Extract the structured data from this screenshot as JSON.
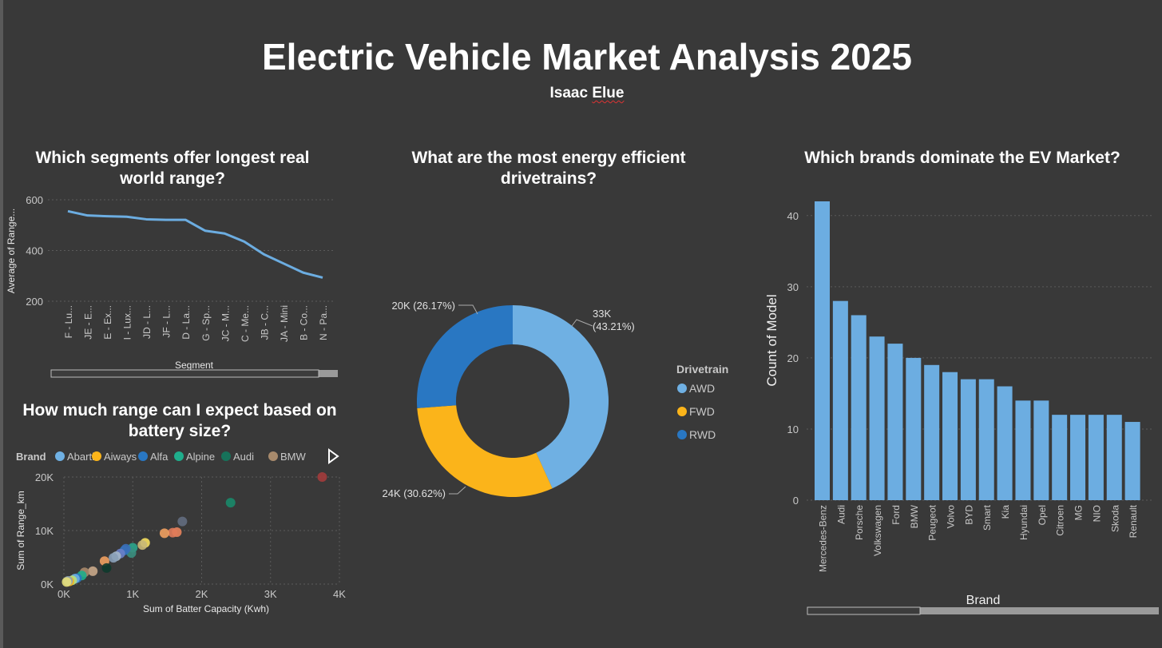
{
  "header": {
    "title": "Electric Vehicle Market Analysis 2025",
    "author_first": "Isaac",
    "author_last": "Elue"
  },
  "chart_data": [
    {
      "id": "range-by-segment",
      "type": "line",
      "title": "Which segments offer longest real world range?",
      "xlabel": "Segment",
      "ylabel": "Average of Range...",
      "ylim": [
        200,
        600
      ],
      "yticks": [
        200,
        400,
        600
      ],
      "categories": [
        "F - Lu...",
        "JE - E...",
        "E - Ex...",
        "I - Lux...",
        "JD - L...",
        "JF - L...",
        "D - La...",
        "G - Sp...",
        "JC - M...",
        "C - Me...",
        "JB - C...",
        "JA - Mini",
        "B - Co...",
        "N - Pa..."
      ],
      "values": [
        555,
        538,
        535,
        533,
        523,
        521,
        521,
        478,
        467,
        435,
        385,
        349,
        313,
        293
      ],
      "color": "#6cade1",
      "grid": true
    },
    {
      "id": "drivetrain-share",
      "type": "pie",
      "title": "What are the most energy efficient drivetrains?",
      "legend_title": "Drivetrain",
      "legend_position": "right",
      "slices": [
        {
          "name": "AWD",
          "label": "33K (43.21%)",
          "label_line1": "33K",
          "label_line2": "(43.21%)",
          "value": 43.21,
          "color": "#6fb0e3"
        },
        {
          "name": "FWD",
          "label": "24K (30.62%)",
          "value": 30.62,
          "color": "#fbb41a"
        },
        {
          "name": "RWD",
          "label": "20K (26.17%)",
          "value": 26.17,
          "color": "#2977c2"
        }
      ]
    },
    {
      "id": "models-by-brand",
      "type": "bar",
      "title": "Which brands dominate the EV Market?",
      "xlabel": "Brand",
      "ylabel": "Count of Model",
      "ylim": [
        0,
        42
      ],
      "yticks": [
        0,
        10,
        20,
        30,
        40
      ],
      "categories": [
        "Mercedes-Benz",
        "Audi",
        "Porsche",
        "Volkswagen",
        "Ford",
        "BMW",
        "Peugeot",
        "Volvo",
        "BYD",
        "Smart",
        "Kia",
        "Hyundai",
        "Opel",
        "Citroen",
        "MG",
        "NIO",
        "Skoda",
        "Renault"
      ],
      "values": [
        42,
        28,
        26,
        23,
        22,
        20,
        19,
        18,
        17,
        17,
        16,
        14,
        14,
        12,
        12,
        12,
        12,
        11
      ],
      "color": "#6cade1",
      "grid": true
    },
    {
      "id": "range-vs-battery",
      "type": "scatter",
      "title": "How much range can I expect based on battery size?",
      "xlabel": "Sum of Batter Capacity (Kwh)",
      "ylabel": "Sum of Range_km",
      "xlim": [
        0,
        4000
      ],
      "ylim": [
        0,
        20000
      ],
      "xticks": [
        {
          "v": 0,
          "label": "0K"
        },
        {
          "v": 1000,
          "label": "1K"
        },
        {
          "v": 2000,
          "label": "2K"
        },
        {
          "v": 3000,
          "label": "3K"
        },
        {
          "v": 4000,
          "label": "4K"
        }
      ],
      "yticks": [
        {
          "v": 0,
          "label": "0K"
        },
        {
          "v": 10000,
          "label": "10K"
        },
        {
          "v": 20000,
          "label": "20K"
        }
      ],
      "legend_title": "Brand",
      "legend": [
        {
          "name": "Abarth",
          "color": "#6fb0e3"
        },
        {
          "name": "Aiways",
          "color": "#fbb41a"
        },
        {
          "name": "Alfa",
          "color": "#2977c2"
        },
        {
          "name": "Alpine",
          "color": "#1fae8c"
        },
        {
          "name": "Audi",
          "color": "#17725a"
        },
        {
          "name": "BMW",
          "color": "#a88a6c"
        }
      ],
      "points": [
        {
          "x": 3750,
          "y": 20000,
          "color": "#a33c3c"
        },
        {
          "x": 2420,
          "y": 15200,
          "color": "#1a8a6a"
        },
        {
          "x": 1720,
          "y": 11700,
          "color": "#636d80"
        },
        {
          "x": 1640,
          "y": 9700,
          "color": "#e8835c"
        },
        {
          "x": 1580,
          "y": 9600,
          "color": "#e07b5a"
        },
        {
          "x": 1460,
          "y": 9500,
          "color": "#f0a060"
        },
        {
          "x": 1180,
          "y": 7700,
          "color": "#f5df5f"
        },
        {
          "x": 1140,
          "y": 7300,
          "color": "#c8b878"
        },
        {
          "x": 1000,
          "y": 6800,
          "color": "#2aa58c"
        },
        {
          "x": 980,
          "y": 5800,
          "color": "#3a8f7f"
        },
        {
          "x": 880,
          "y": 6300,
          "color": "#2977c2"
        },
        {
          "x": 900,
          "y": 6600,
          "color": "#3a6fb8"
        },
        {
          "x": 820,
          "y": 5700,
          "color": "#6a80c8"
        },
        {
          "x": 760,
          "y": 5200,
          "color": "#a4b6c8"
        },
        {
          "x": 720,
          "y": 4900,
          "color": "#8aa0b8"
        },
        {
          "x": 590,
          "y": 4300,
          "color": "#f0a060"
        },
        {
          "x": 620,
          "y": 3000,
          "color": "#0e3a2c"
        },
        {
          "x": 420,
          "y": 2400,
          "color": "#c9a889"
        },
        {
          "x": 300,
          "y": 2200,
          "color": "#a88a6c"
        },
        {
          "x": 260,
          "y": 1600,
          "color": "#1fae8c"
        },
        {
          "x": 190,
          "y": 1100,
          "color": "#2977c2"
        },
        {
          "x": 160,
          "y": 1000,
          "color": "#6fb0e3"
        },
        {
          "x": 120,
          "y": 700,
          "color": "#b9e07a"
        },
        {
          "x": 80,
          "y": 500,
          "color": "#fbb41a"
        },
        {
          "x": 60,
          "y": 600,
          "color": "#8aa0b8"
        },
        {
          "x": 40,
          "y": 400,
          "color": "#e6e07a"
        }
      ]
    }
  ]
}
